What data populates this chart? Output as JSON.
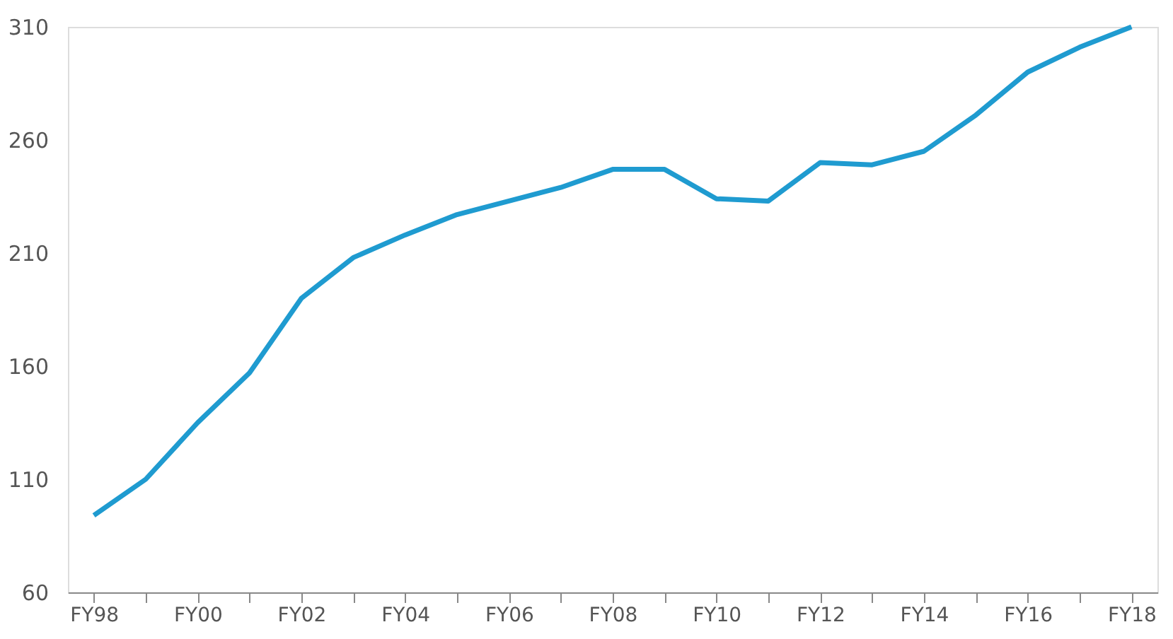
{
  "chart_data": {
    "type": "line",
    "categories": [
      "FY98",
      null,
      "FY00",
      null,
      "FY02",
      null,
      "FY04",
      null,
      "FY06",
      null,
      "FY08",
      null,
      "FY10",
      null,
      "FY12",
      null,
      "FY14",
      null,
      "FY16",
      null,
      "FY18"
    ],
    "series": [
      {
        "color": "#1f9bd0",
        "values": [
          94,
          110,
          135,
          157,
          190,
          208,
          218,
          227,
          233,
          239,
          247,
          247,
          234,
          233,
          250,
          249,
          255,
          271,
          290,
          301,
          310
        ]
      }
    ],
    "ylim": [
      60,
      310
    ],
    "yticks": [
      60,
      110,
      160,
      210,
      260,
      310
    ],
    "grid": false,
    "marker": "none",
    "line_style": "solid"
  }
}
